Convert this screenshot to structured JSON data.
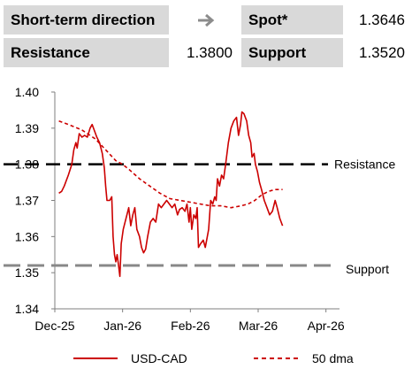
{
  "header": {
    "direction_label": "Short-term direction",
    "direction_icon": "arrow-right-icon",
    "spot_label": "Spot*",
    "spot_value": "1.3646",
    "resistance_label": "Resistance",
    "resistance_value": "1.3800",
    "support_label": "Support",
    "support_value": "1.3520"
  },
  "chart_data": {
    "type": "line",
    "ylim": [
      1.34,
      1.4
    ],
    "yticks": [
      "1.40",
      "1.39",
      "1.38",
      "1.37",
      "1.36",
      "1.35",
      "1.34"
    ],
    "ytick_values": [
      1.4,
      1.39,
      1.38,
      1.37,
      1.36,
      1.35,
      1.34
    ],
    "xticks": [
      "Dec-25",
      "Jan-26",
      "Feb-26",
      "Mar-26",
      "Apr-26"
    ],
    "xtick_values": [
      0,
      1,
      2,
      3,
      4
    ],
    "xlim": [
      0,
      4.2
    ],
    "grid": false,
    "legend": "bottom",
    "series": [
      {
        "name": "USD-CAD",
        "color": "#cc0000",
        "style": "solid",
        "points": [
          [
            0.06,
            1.372
          ],
          [
            0.1,
            1.3725
          ],
          [
            0.14,
            1.374
          ],
          [
            0.2,
            1.377
          ],
          [
            0.25,
            1.38
          ],
          [
            0.28,
            1.384
          ],
          [
            0.31,
            1.386
          ],
          [
            0.33,
            1.3845
          ],
          [
            0.36,
            1.3885
          ],
          [
            0.4,
            1.3875
          ],
          [
            0.44,
            1.388
          ],
          [
            0.48,
            1.3875
          ],
          [
            0.52,
            1.39
          ],
          [
            0.55,
            1.391
          ],
          [
            0.58,
            1.3895
          ],
          [
            0.62,
            1.3875
          ],
          [
            0.66,
            1.386
          ],
          [
            0.7,
            1.383
          ],
          [
            0.73,
            1.379
          ],
          [
            0.75,
            1.374
          ],
          [
            0.77,
            1.37
          ],
          [
            0.81,
            1.37
          ],
          [
            0.84,
            1.371
          ],
          [
            0.86,
            1.36
          ],
          [
            0.88,
            1.355
          ],
          [
            0.9,
            1.353
          ],
          [
            0.92,
            1.355
          ],
          [
            0.94,
            1.352
          ],
          [
            0.96,
            1.349
          ],
          [
            0.98,
            1.358
          ],
          [
            1.01,
            1.362
          ],
          [
            1.05,
            1.365
          ],
          [
            1.09,
            1.368
          ],
          [
            1.12,
            1.363
          ],
          [
            1.15,
            1.366
          ],
          [
            1.18,
            1.368
          ],
          [
            1.21,
            1.362
          ],
          [
            1.25,
            1.36
          ],
          [
            1.28,
            1.357
          ],
          [
            1.31,
            1.3555
          ],
          [
            1.34,
            1.3565
          ],
          [
            1.37,
            1.36
          ],
          [
            1.41,
            1.364
          ],
          [
            1.45,
            1.365
          ],
          [
            1.49,
            1.364
          ],
          [
            1.53,
            1.369
          ],
          [
            1.57,
            1.368
          ],
          [
            1.61,
            1.369
          ],
          [
            1.65,
            1.37
          ],
          [
            1.69,
            1.369
          ],
          [
            1.73,
            1.368
          ],
          [
            1.77,
            1.369
          ],
          [
            1.81,
            1.366
          ],
          [
            1.84,
            1.3675
          ],
          [
            1.88,
            1.368
          ],
          [
            1.92,
            1.367
          ],
          [
            1.95,
            1.369
          ],
          [
            1.98,
            1.364
          ],
          [
            2.0,
            1.368
          ],
          [
            2.02,
            1.362
          ],
          [
            2.05,
            1.366
          ],
          [
            2.08,
            1.365
          ],
          [
            2.1,
            1.368
          ],
          [
            2.12,
            1.357
          ],
          [
            2.15,
            1.358
          ],
          [
            2.19,
            1.359
          ],
          [
            2.22,
            1.357
          ],
          [
            2.25,
            1.36
          ],
          [
            2.27,
            1.362
          ],
          [
            2.3,
            1.37
          ],
          [
            2.33,
            1.369
          ],
          [
            2.36,
            1.371
          ],
          [
            2.38,
            1.37
          ],
          [
            2.4,
            1.376
          ],
          [
            2.43,
            1.374
          ],
          [
            2.46,
            1.377
          ],
          [
            2.49,
            1.376
          ],
          [
            2.52,
            1.38
          ],
          [
            2.56,
            1.386
          ],
          [
            2.6,
            1.39
          ],
          [
            2.64,
            1.392
          ],
          [
            2.68,
            1.393
          ],
          [
            2.71,
            1.388
          ],
          [
            2.74,
            1.391
          ],
          [
            2.76,
            1.3945
          ],
          [
            2.79,
            1.394
          ],
          [
            2.83,
            1.392
          ],
          [
            2.86,
            1.388
          ],
          [
            2.89,
            1.386
          ],
          [
            2.91,
            1.382
          ],
          [
            2.94,
            1.383
          ],
          [
            2.96,
            1.38
          ],
          [
            2.99,
            1.378
          ],
          [
            3.02,
            1.375
          ],
          [
            3.05,
            1.373
          ],
          [
            3.09,
            1.37
          ],
          [
            3.13,
            1.368
          ],
          [
            3.17,
            1.366
          ],
          [
            3.21,
            1.367
          ],
          [
            3.25,
            1.37
          ],
          [
            3.28,
            1.368
          ],
          [
            3.32,
            1.365
          ],
          [
            3.36,
            1.363
          ]
        ]
      },
      {
        "name": "50 dma",
        "color": "#cc0000",
        "style": "dashed",
        "points": [
          [
            0.06,
            1.392
          ],
          [
            0.2,
            1.391
          ],
          [
            0.4,
            1.3895
          ],
          [
            0.6,
            1.387
          ],
          [
            0.75,
            1.384
          ],
          [
            0.9,
            1.381
          ],
          [
            1.0,
            1.38
          ],
          [
            1.1,
            1.3785
          ],
          [
            1.25,
            1.376
          ],
          [
            1.4,
            1.374
          ],
          [
            1.55,
            1.372
          ],
          [
            1.7,
            1.3705
          ],
          [
            1.85,
            1.37
          ],
          [
            2.0,
            1.3695
          ],
          [
            2.15,
            1.369
          ],
          [
            2.3,
            1.3685
          ],
          [
            2.45,
            1.3685
          ],
          [
            2.6,
            1.368
          ],
          [
            2.75,
            1.3685
          ],
          [
            2.85,
            1.369
          ],
          [
            2.95,
            1.37
          ],
          [
            3.05,
            1.3715
          ],
          [
            3.15,
            1.3725
          ],
          [
            3.25,
            1.373
          ],
          [
            3.36,
            1.373
          ]
        ]
      }
    ],
    "reference_lines": [
      {
        "name": "Resistance",
        "value": 1.38,
        "color": "#000000"
      },
      {
        "name": "Support",
        "value": 1.352,
        "color": "#888888"
      }
    ]
  }
}
